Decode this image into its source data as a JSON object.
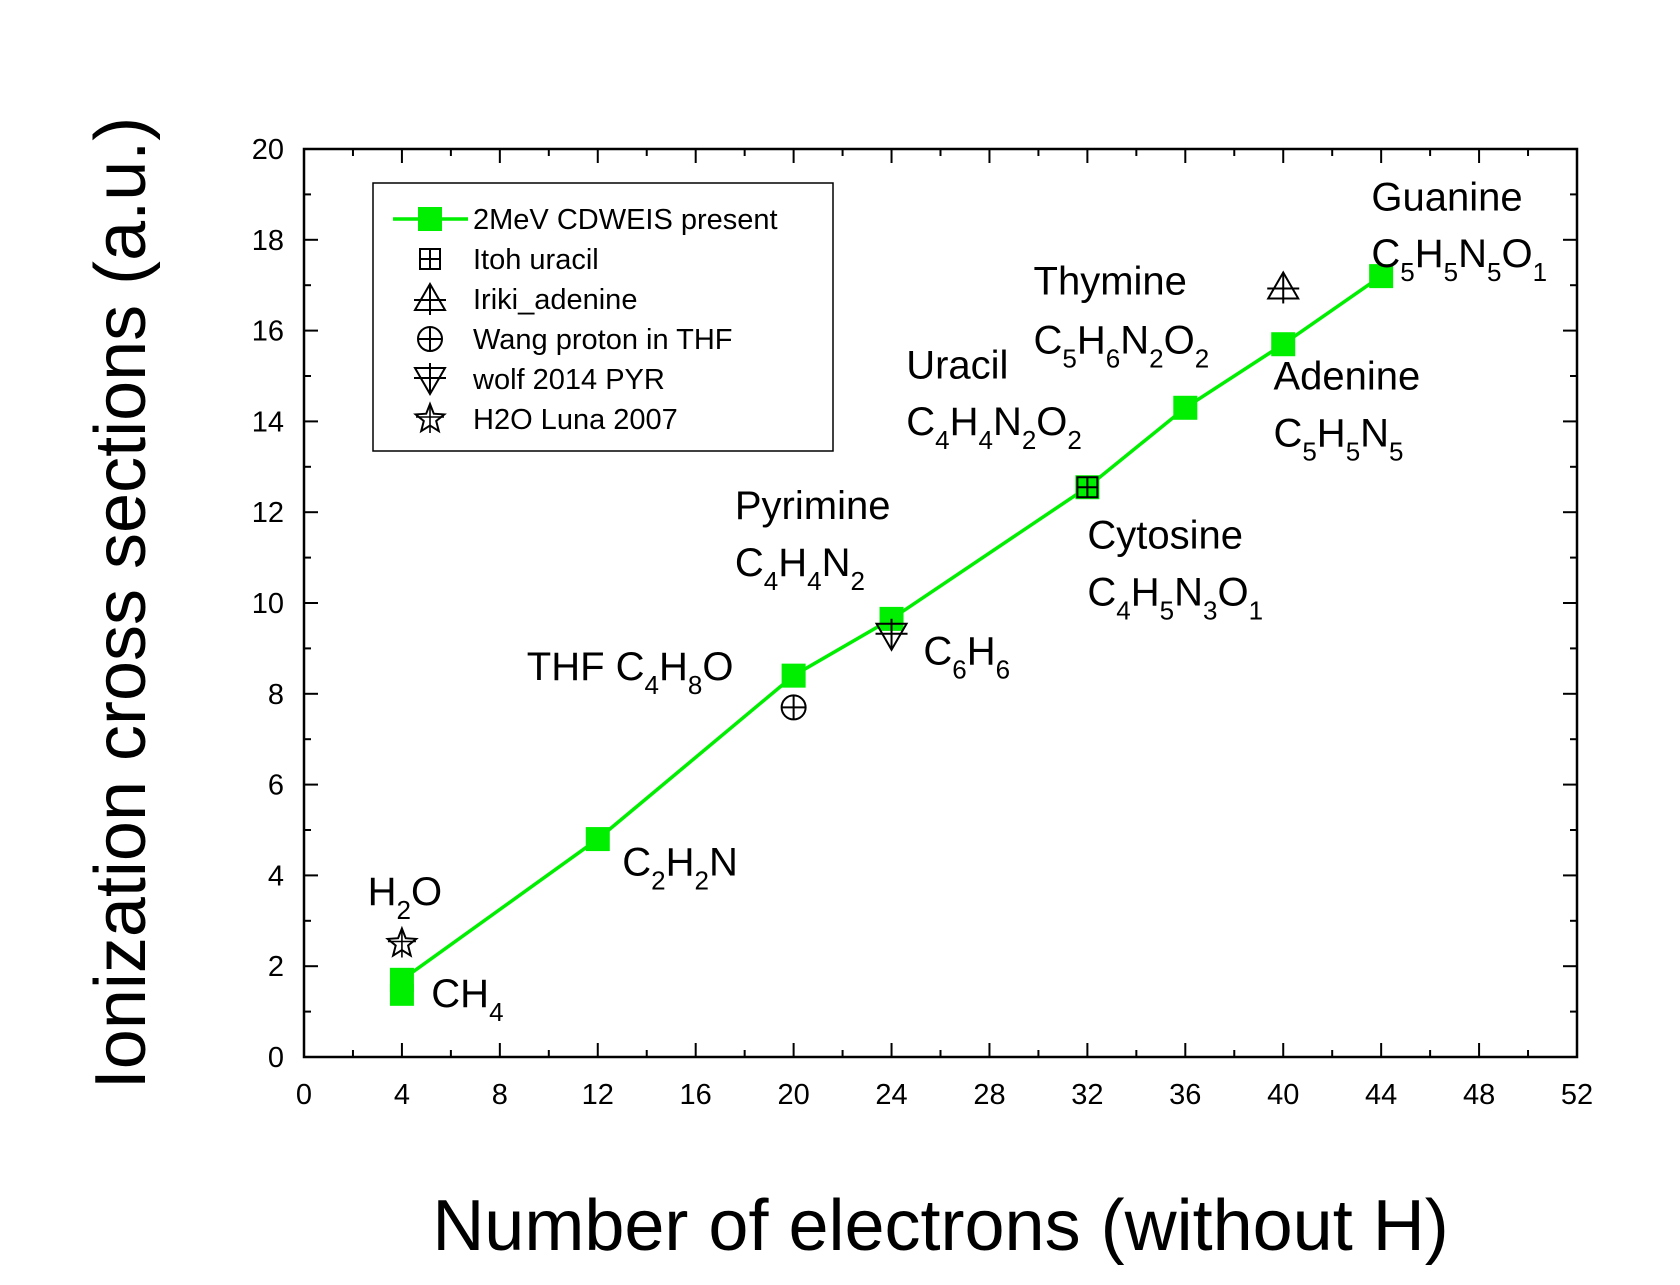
{
  "chart_data": {
    "type": "scatter",
    "xlabel": "Number of electrons (without H)",
    "ylabel": "Ionization cross sections (a.u.)",
    "xlim": [
      0,
      52
    ],
    "ylim": [
      0,
      20
    ],
    "x_ticks": [
      "0",
      "4",
      "8",
      "12",
      "16",
      "20",
      "24",
      "28",
      "32",
      "36",
      "40",
      "44",
      "48",
      "52"
    ],
    "y_ticks": [
      "0",
      "2",
      "4",
      "6",
      "8",
      "10",
      "12",
      "14",
      "16",
      "18",
      "20"
    ],
    "x_tick_values": [
      0,
      4,
      8,
      12,
      16,
      20,
      24,
      28,
      32,
      36,
      40,
      44,
      48,
      52
    ],
    "y_tick_values": [
      0,
      2,
      4,
      6,
      8,
      10,
      12,
      14,
      16,
      18,
      20
    ],
    "legend_position": "top-left",
    "series": [
      {
        "name": "2MeV CDWEIS present",
        "marker": "square",
        "line": true,
        "color": "#00ee00",
        "x": [
          4,
          12,
          20,
          24,
          32,
          36,
          40,
          44
        ],
        "y": [
          1.7,
          4.8,
          8.4,
          9.65,
          12.55,
          14.3,
          15.7,
          17.2
        ]
      },
      {
        "name": "Itoh uracil",
        "marker": "boxplus",
        "line": false,
        "color": "#000000",
        "x": [
          32
        ],
        "y": [
          12.55
        ]
      },
      {
        "name": "Iriki_adenine",
        "marker": "triangle-up-cross",
        "line": false,
        "color": "#000000",
        "x": [
          40
        ],
        "y": [
          16.95
        ]
      },
      {
        "name": "Wang proton in THF",
        "marker": "circle-plus",
        "line": false,
        "color": "#000000",
        "x": [
          20
        ],
        "y": [
          7.7
        ]
      },
      {
        "name": "wolf 2014 PYR",
        "marker": "triangle-down-cross",
        "line": false,
        "color": "#000000",
        "x": [
          24
        ],
        "y": [
          9.3
        ]
      },
      {
        "name": "H2O Luna 2007",
        "marker": "star",
        "line": false,
        "color": "#000000",
        "x": [
          4
        ],
        "y": [
          2.5
        ]
      }
    ],
    "annotations": [
      {
        "id": "ch4",
        "parts": [
          {
            "t": "CH",
            "s": false
          },
          {
            "t": "4",
            "s": true
          }
        ],
        "x": 5.2,
        "y": 1.1
      },
      {
        "id": "h2o",
        "parts": [
          {
            "t": "H",
            "s": false
          },
          {
            "t": "2",
            "s": true
          },
          {
            "t": "O",
            "s": false
          }
        ],
        "x": 2.6,
        "y": 3.35
      },
      {
        "id": "c2h2n",
        "parts": [
          {
            "t": "C",
            "s": false
          },
          {
            "t": "2",
            "s": true
          },
          {
            "t": "H",
            "s": false
          },
          {
            "t": "2",
            "s": true
          },
          {
            "t": "N",
            "s": false
          }
        ],
        "x": 13.0,
        "y": 4.0
      },
      {
        "id": "thf",
        "parts": [
          {
            "t": "THF C",
            "s": false
          },
          {
            "t": "4",
            "s": true
          },
          {
            "t": "H",
            "s": false
          },
          {
            "t": "8",
            "s": true
          },
          {
            "t": "O",
            "s": false
          }
        ],
        "x": 9.1,
        "y": 8.3
      },
      {
        "id": "pyrimine-name",
        "parts": [
          {
            "t": "Pyrimine",
            "s": false
          }
        ],
        "x": 17.6,
        "y": 11.85
      },
      {
        "id": "pyrimine-formula",
        "parts": [
          {
            "t": "C",
            "s": false
          },
          {
            "t": "4",
            "s": true
          },
          {
            "t": "H",
            "s": false
          },
          {
            "t": "4",
            "s": true
          },
          {
            "t": "N",
            "s": false
          },
          {
            "t": "2",
            "s": true
          }
        ],
        "x": 17.6,
        "y": 10.6
      },
      {
        "id": "c6h6",
        "parts": [
          {
            "t": "C",
            "s": false
          },
          {
            "t": "6",
            "s": true
          },
          {
            "t": "H",
            "s": false
          },
          {
            "t": "6",
            "s": true
          }
        ],
        "x": 25.3,
        "y": 8.65
      },
      {
        "id": "uracil-name",
        "parts": [
          {
            "t": "Uracil",
            "s": false
          }
        ],
        "x": 24.6,
        "y": 14.95
      },
      {
        "id": "uracil-formula",
        "parts": [
          {
            "t": "C",
            "s": false
          },
          {
            "t": "4",
            "s": true
          },
          {
            "t": "H",
            "s": false
          },
          {
            "t": "4",
            "s": true
          },
          {
            "t": "N",
            "s": false
          },
          {
            "t": "2",
            "s": true
          },
          {
            "t": "O",
            "s": false
          },
          {
            "t": "2",
            "s": true
          }
        ],
        "x": 24.6,
        "y": 13.7
      },
      {
        "id": "cytosine-name",
        "parts": [
          {
            "t": "Cytosine",
            "s": false
          }
        ],
        "x": 32.0,
        "y": 11.2
      },
      {
        "id": "cytosine-formula",
        "parts": [
          {
            "t": "C",
            "s": false
          },
          {
            "t": "4",
            "s": true
          },
          {
            "t": "H",
            "s": false
          },
          {
            "t": "5",
            "s": true
          },
          {
            "t": "N",
            "s": false
          },
          {
            "t": "3",
            "s": true
          },
          {
            "t": "O",
            "s": false
          },
          {
            "t": "1",
            "s": true
          }
        ],
        "x": 32.0,
        "y": 9.95
      },
      {
        "id": "thymine-name",
        "parts": [
          {
            "t": "Thymine",
            "s": false
          }
        ],
        "x": 29.8,
        "y": 16.8
      },
      {
        "id": "thymine-formula",
        "parts": [
          {
            "t": "C",
            "s": false
          },
          {
            "t": "5",
            "s": true
          },
          {
            "t": "H",
            "s": false
          },
          {
            "t": "6",
            "s": true
          },
          {
            "t": "N",
            "s": false
          },
          {
            "t": "2",
            "s": true
          },
          {
            "t": "O",
            "s": false
          },
          {
            "t": "2",
            "s": true
          }
        ],
        "x": 29.8,
        "y": 15.5
      },
      {
        "id": "adenine-name",
        "parts": [
          {
            "t": "Adenine",
            "s": false
          }
        ],
        "x": 39.6,
        "y": 14.7
      },
      {
        "id": "adenine-formula",
        "parts": [
          {
            "t": "C",
            "s": false
          },
          {
            "t": "5",
            "s": true
          },
          {
            "t": "H",
            "s": false
          },
          {
            "t": "5",
            "s": true
          },
          {
            "t": "N",
            "s": false
          },
          {
            "t": "5",
            "s": true
          }
        ],
        "x": 39.6,
        "y": 13.45
      },
      {
        "id": "guanine-name",
        "parts": [
          {
            "t": "Guanine",
            "s": false
          }
        ],
        "x": 43.6,
        "y": 18.65
      },
      {
        "id": "guanine-formula",
        "parts": [
          {
            "t": "C",
            "s": false
          },
          {
            "t": "5",
            "s": true
          },
          {
            "t": "H",
            "s": false
          },
          {
            "t": "5",
            "s": true
          },
          {
            "t": "N",
            "s": false
          },
          {
            "t": "5",
            "s": true
          },
          {
            "t": "O",
            "s": false
          },
          {
            "t": "1",
            "s": true
          }
        ],
        "x": 43.6,
        "y": 17.4
      }
    ]
  }
}
